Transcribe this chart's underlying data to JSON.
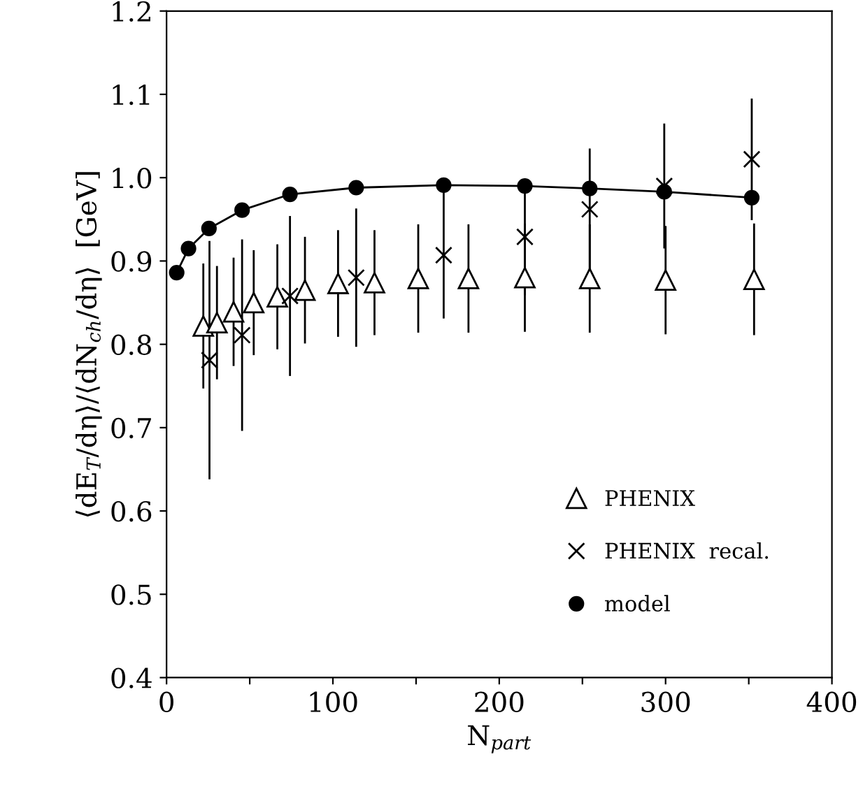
{
  "chart_data": {
    "type": "scatter",
    "xlabel": "N$_{part}$",
    "ylabel": "⟨dE$_{T}$/dη⟩/⟨dN$_{ch}$/dη⟩  [GeV]",
    "xlim": [
      0,
      400
    ],
    "xticks": [
      0,
      {
        "value": 50,
        "label": null
      },
      100,
      {
        "value": 150,
        "label": null
      },
      200,
      {
        "value": 250,
        "label": null
      },
      300,
      {
        "value": 350,
        "label": null
      },
      400
    ],
    "ylim": [
      0.4,
      1.2
    ],
    "yticks": [
      0.4,
      0.5,
      0.6,
      0.7,
      0.8,
      0.9,
      {
        "value": 1.0,
        "label": "1.0"
      },
      1.1,
      1.2
    ],
    "grid": false,
    "legend": "bottom right",
    "series": [
      {
        "name": "PHENIX",
        "marker": "triangle",
        "color": "#000000",
        "x": [
          22.1,
          30.3,
          40.3,
          52.4,
          66.6,
          83.2,
          103.1,
          125,
          151.3,
          181.5,
          215.4,
          254.4,
          300,
          353.2
        ],
        "values": [
          0.822,
          0.826,
          0.839,
          0.85,
          0.857,
          0.865,
          0.873,
          0.874,
          0.879,
          0.879,
          0.88,
          0.879,
          0.877,
          0.878
        ],
        "errors": [
          0.075,
          0.068,
          0.065,
          0.063,
          0.063,
          0.064,
          0.064,
          0.063,
          0.065,
          0.065,
          0.065,
          0.065,
          0.065,
          0.067
        ]
      },
      {
        "name": "PHENIX  recal.",
        "marker": "cross",
        "color": "#000000",
        "x": [
          25.8,
          45.4,
          74.2,
          114,
          166.6,
          215.4,
          254.4,
          299.2,
          351.8
        ],
        "values": [
          0.781,
          0.811,
          0.858,
          0.88,
          0.907,
          0.929,
          0.962,
          0.99,
          1.022
        ],
        "errors": [
          0.143,
          0.115,
          0.096,
          0.083,
          0.076,
          0.07,
          0.073,
          0.075,
          0.073
        ]
      },
      {
        "name": "model",
        "type": "line",
        "marker": "circle",
        "color": "#000000",
        "x": [
          6.1,
          13.2,
          25.5,
          45.4,
          74.2,
          114,
          166.6,
          215.4,
          254.4,
          299.2,
          351.8
        ],
        "values": [
          0.886,
          0.915,
          0.939,
          0.961,
          0.98,
          0.988,
          0.991,
          0.99,
          0.987,
          0.983,
          0.976
        ]
      }
    ]
  }
}
